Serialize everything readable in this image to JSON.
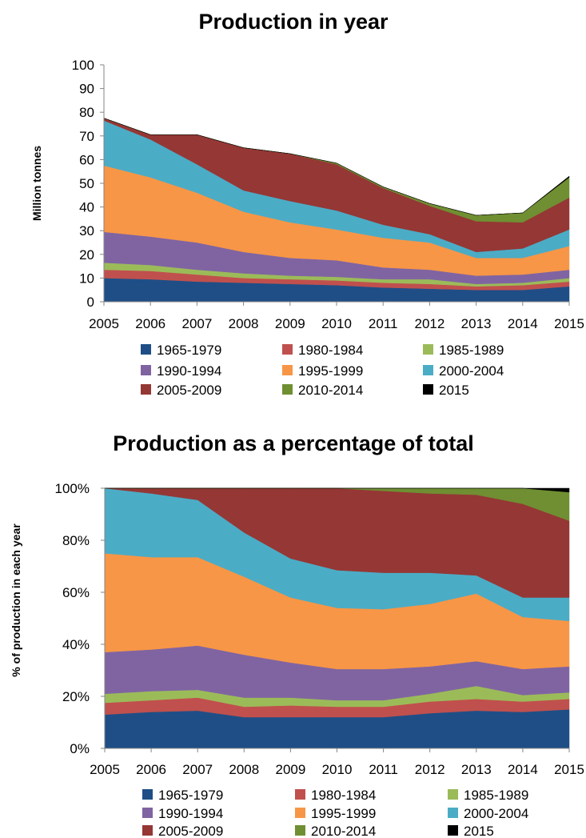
{
  "chart_data": [
    {
      "type": "area",
      "stacked": true,
      "title": "Production in year",
      "xlabel": "",
      "ylabel": "Million tonnes",
      "ylim": [
        0,
        100
      ],
      "yticks": [
        "0",
        "10",
        "20",
        "30",
        "40",
        "50",
        "60",
        "70",
        "80",
        "90",
        "100"
      ],
      "x": [
        "2005",
        "2006",
        "2007",
        "2008",
        "2009",
        "2010",
        "2011",
        "2012",
        "2013",
        "2014",
        "2015"
      ],
      "legend_position": "bottom",
      "series": [
        {
          "name": "1965-1979",
          "color": "#1f4e86",
          "values": [
            10,
            9.5,
            8.5,
            8,
            7.5,
            7,
            6,
            5.5,
            5,
            5,
            6.5
          ]
        },
        {
          "name": "1980-1984",
          "color": "#c0504d",
          "values": [
            3.5,
            3.5,
            3,
            2,
            2,
            2,
            2,
            2,
            1.5,
            2,
            2
          ]
        },
        {
          "name": "1985-1989",
          "color": "#9bbb59",
          "values": [
            3,
            2.5,
            2,
            2,
            1.5,
            1.5,
            1.5,
            2,
            1,
            1,
            1.5
          ]
        },
        {
          "name": "1990-1994",
          "color": "#8064a2",
          "values": [
            13,
            12,
            11.5,
            9,
            7.5,
            7,
            5,
            4,
            3.5,
            3.5,
            3.5
          ]
        },
        {
          "name": "1995-1999",
          "color": "#f79646",
          "values": [
            28,
            25,
            21,
            17,
            15,
            13,
            12.5,
            11.5,
            7.5,
            7,
            10
          ]
        },
        {
          "name": "2000-2004",
          "color": "#4bacc6",
          "values": [
            19,
            16,
            12,
            9,
            9,
            8,
            5.5,
            3.5,
            2.5,
            4,
            7
          ]
        },
        {
          "name": "2005-2009",
          "color": "#953735",
          "values": [
            1,
            2,
            12.5,
            18,
            20,
            19.5,
            15.5,
            12,
            13,
            11,
            13.5
          ]
        },
        {
          "name": "2010-2014",
          "color": "#6f8f32",
          "values": [
            0,
            0,
            0,
            0,
            0,
            0.5,
            0.5,
            1,
            2.5,
            4,
            8.5
          ]
        },
        {
          "name": "2015",
          "color": "#000000",
          "values": [
            0,
            0,
            0,
            0,
            0,
            0,
            0,
            0,
            0,
            0,
            0.5
          ]
        }
      ]
    },
    {
      "type": "area",
      "stacked": true,
      "percent": true,
      "title": "Production as a percentage of total",
      "xlabel": "",
      "ylabel": "% of production in each year",
      "ylim": [
        0,
        100
      ],
      "yticks": [
        "0%",
        "20%",
        "40%",
        "60%",
        "80%",
        "100%"
      ],
      "x": [
        "2005",
        "2006",
        "2007",
        "2008",
        "2009",
        "2010",
        "2011",
        "2012",
        "2013",
        "2014",
        "2015"
      ],
      "legend_position": "bottom",
      "series": [
        {
          "name": "1965-1979",
          "color": "#1f4e86",
          "values": [
            13,
            14,
            14.5,
            12,
            12,
            12,
            12,
            13.5,
            14.5,
            14,
            15
          ]
        },
        {
          "name": "1980-1984",
          "color": "#c0504d",
          "values": [
            4.5,
            4.5,
            5,
            4,
            4.5,
            4,
            4,
            4.5,
            4.5,
            4,
            4
          ]
        },
        {
          "name": "1985-1989",
          "color": "#9bbb59",
          "values": [
            3.5,
            3.5,
            3,
            3.5,
            3,
            2.5,
            2.5,
            3,
            5,
            2.5,
            2.5
          ]
        },
        {
          "name": "1990-1994",
          "color": "#8064a2",
          "values": [
            16,
            16,
            17,
            16.5,
            13.5,
            12,
            12,
            10.5,
            9.5,
            10,
            10
          ]
        },
        {
          "name": "1995-1999",
          "color": "#f79646",
          "values": [
            38,
            35.5,
            34,
            30,
            25,
            23.5,
            23,
            24,
            26,
            20,
            17.5
          ]
        },
        {
          "name": "2000-2004",
          "color": "#4bacc6",
          "values": [
            25,
            24.5,
            22,
            17,
            15,
            14.5,
            14,
            12,
            7,
            7.5,
            9
          ]
        },
        {
          "name": "2005-2009",
          "color": "#953735",
          "values": [
            0,
            2,
            4.5,
            17,
            27,
            31.5,
            31.5,
            30.5,
            31,
            36,
            29.5
          ]
        },
        {
          "name": "2010-2014",
          "color": "#6f8f32",
          "values": [
            0,
            0,
            0,
            0,
            0,
            0,
            1,
            2,
            2.5,
            6,
            11
          ]
        },
        {
          "name": "2015",
          "color": "#000000",
          "values": [
            0,
            0,
            0,
            0,
            0,
            0,
            0,
            0,
            0,
            0,
            1.5
          ]
        }
      ]
    }
  ]
}
